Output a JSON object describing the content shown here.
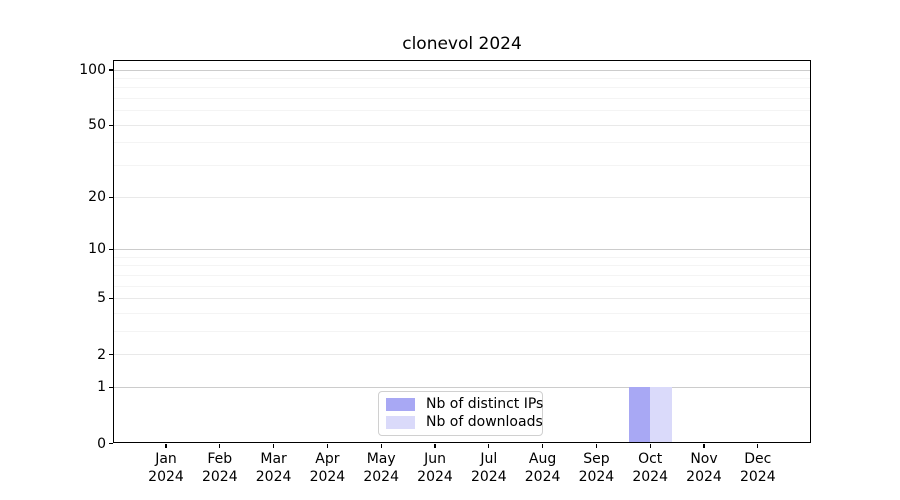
{
  "chart_data": {
    "type": "bar",
    "title": "clonevol 2024",
    "x_categories": [
      {
        "line1": "Jan",
        "line2": "2024"
      },
      {
        "line1": "Feb",
        "line2": "2024"
      },
      {
        "line1": "Mar",
        "line2": "2024"
      },
      {
        "line1": "Apr",
        "line2": "2024"
      },
      {
        "line1": "May",
        "line2": "2024"
      },
      {
        "line1": "Jun",
        "line2": "2024"
      },
      {
        "line1": "Jul",
        "line2": "2024"
      },
      {
        "line1": "Aug",
        "line2": "2024"
      },
      {
        "line1": "Sep",
        "line2": "2024"
      },
      {
        "line1": "Oct",
        "line2": "2024"
      },
      {
        "line1": "Nov",
        "line2": "2024"
      },
      {
        "line1": "Dec",
        "line2": "2024"
      }
    ],
    "series": [
      {
        "name": "Nb of distinct IPs",
        "key": "distinct-ips",
        "color": "#a8a8f4",
        "values": [
          0,
          0,
          0,
          0,
          0,
          0,
          0,
          0,
          0,
          1,
          0,
          0
        ]
      },
      {
        "name": "Nb of downloads",
        "key": "downloads",
        "color": "#dadafa",
        "values": [
          0,
          0,
          0,
          0,
          0,
          0,
          0,
          0,
          0,
          1,
          0,
          0
        ]
      }
    ],
    "y_axis": {
      "scale": "log1p",
      "ticks": [
        0,
        1,
        2,
        5,
        10,
        20,
        50,
        100
      ],
      "range": [
        0,
        114
      ]
    },
    "grid": {
      "decade_lines": [
        1,
        10,
        100
      ],
      "mid_lines": [
        2,
        5,
        20,
        50
      ],
      "minor_lines": [
        3,
        4,
        6,
        7,
        8,
        9,
        30,
        40,
        60,
        70,
        80,
        90
      ]
    },
    "grid_colors": {
      "decade": "#cccccc",
      "mid": "#e9e9e9",
      "minor": "#f4f4f4"
    },
    "legend": {
      "position": "bottom-center"
    }
  }
}
